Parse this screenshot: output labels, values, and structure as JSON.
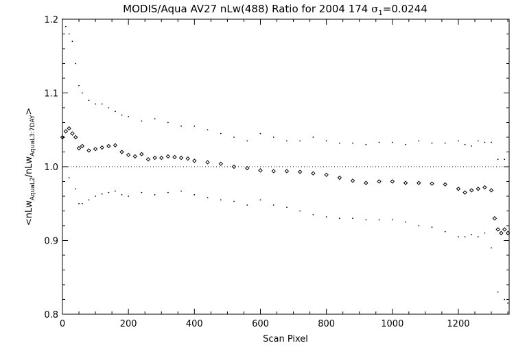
{
  "chart_data": {
    "type": "scatter",
    "title_main": "MODIS/Aqua AV27 nLw(488) Ratio for 2004 174 ",
    "title_sigma": "σ",
    "title_sigma_sub": "1",
    "title_value": "=0.0244",
    "xlabel": "Scan Pixel",
    "ylabel_parts": {
      "open": "<nLw",
      "sub1": "AquaL2",
      "mid": "/nLw",
      "sub2": "AquaL3:7DAY",
      "close": ">"
    },
    "xlim": [
      0,
      1354
    ],
    "ylim": [
      0.8,
      1.2
    ],
    "x_ticks": [
      0,
      200,
      400,
      600,
      800,
      1000,
      1200
    ],
    "y_ticks": [
      0.8,
      0.9,
      1.0,
      1.1,
      1.2
    ],
    "x_tick_labels": [
      "0",
      "200",
      "400",
      "600",
      "800",
      "1000",
      "1200"
    ],
    "y_tick_labels": [
      "0.8",
      "0.9",
      "1.0",
      "1.1",
      "1.2"
    ],
    "reference_line": 1.0,
    "grid": false,
    "series": [
      {
        "role": "mean",
        "style": "diamonds",
        "x": [
          0,
          10,
          20,
          30,
          40,
          50,
          60,
          80,
          100,
          120,
          140,
          160,
          180,
          200,
          220,
          240,
          260,
          280,
          300,
          320,
          340,
          360,
          380,
          400,
          440,
          480,
          520,
          560,
          600,
          640,
          680,
          720,
          760,
          800,
          840,
          880,
          920,
          960,
          1000,
          1040,
          1080,
          1120,
          1160,
          1200,
          1220,
          1240,
          1260,
          1280,
          1300,
          1310,
          1320,
          1330,
          1340,
          1350
        ],
        "y": [
          1.04,
          1.048,
          1.052,
          1.045,
          1.04,
          1.025,
          1.028,
          1.022,
          1.024,
          1.026,
          1.028,
          1.029,
          1.02,
          1.016,
          1.014,
          1.017,
          1.01,
          1.012,
          1.012,
          1.014,
          1.013,
          1.012,
          1.011,
          1.008,
          1.006,
          1.004,
          1.0,
          0.998,
          0.995,
          0.994,
          0.994,
          0.993,
          0.991,
          0.989,
          0.985,
          0.981,
          0.978,
          0.98,
          0.98,
          0.978,
          0.978,
          0.977,
          0.976,
          0.97,
          0.965,
          0.968,
          0.97,
          0.972,
          0.968,
          0.93,
          0.915,
          0.91,
          0.915,
          0.91
        ]
      },
      {
        "role": "upper",
        "style": "dots",
        "x": [
          0,
          10,
          20,
          30,
          40,
          50,
          60,
          80,
          100,
          120,
          140,
          160,
          180,
          200,
          240,
          280,
          320,
          360,
          400,
          440,
          480,
          520,
          560,
          600,
          640,
          680,
          720,
          760,
          800,
          840,
          880,
          920,
          960,
          1000,
          1040,
          1080,
          1120,
          1160,
          1200,
          1220,
          1240,
          1260,
          1280,
          1300,
          1320,
          1340
        ],
        "y": [
          1.2,
          1.19,
          1.18,
          1.17,
          1.14,
          1.11,
          1.1,
          1.09,
          1.085,
          1.085,
          1.08,
          1.075,
          1.07,
          1.068,
          1.062,
          1.065,
          1.06,
          1.055,
          1.055,
          1.05,
          1.045,
          1.04,
          1.035,
          1.045,
          1.04,
          1.035,
          1.035,
          1.04,
          1.035,
          1.032,
          1.032,
          1.03,
          1.033,
          1.033,
          1.03,
          1.035,
          1.032,
          1.032,
          1.035,
          1.03,
          1.028,
          1.035,
          1.033,
          1.033,
          1.01,
          1.01
        ]
      },
      {
        "role": "lower",
        "style": "dots",
        "x": [
          0,
          20,
          40,
          50,
          60,
          80,
          100,
          120,
          140,
          160,
          180,
          200,
          240,
          280,
          320,
          360,
          400,
          440,
          480,
          520,
          560,
          600,
          640,
          680,
          720,
          760,
          800,
          840,
          880,
          920,
          960,
          1000,
          1040,
          1080,
          1120,
          1160,
          1200,
          1220,
          1240,
          1260,
          1280,
          1300,
          1320,
          1340,
          1350
        ],
        "y": [
          1.0,
          0.985,
          0.97,
          0.95,
          0.95,
          0.955,
          0.96,
          0.963,
          0.965,
          0.967,
          0.962,
          0.96,
          0.965,
          0.962,
          0.965,
          0.967,
          0.962,
          0.958,
          0.955,
          0.953,
          0.948,
          0.955,
          0.948,
          0.945,
          0.94,
          0.935,
          0.932,
          0.93,
          0.93,
          0.928,
          0.928,
          0.928,
          0.925,
          0.92,
          0.918,
          0.912,
          0.905,
          0.905,
          0.908,
          0.905,
          0.91,
          0.89,
          0.83,
          0.82,
          0.815
        ]
      }
    ]
  }
}
